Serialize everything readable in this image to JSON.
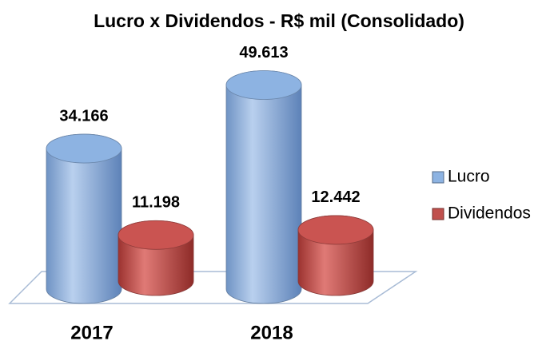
{
  "chart_data": {
    "type": "bar3d",
    "title": "Lucro x Dividendos - R$ mil (Consolidado)",
    "categories": [
      "2017",
      "2018"
    ],
    "series": [
      {
        "name": "Lucro",
        "color": "#8db3e2",
        "values": [
          34166,
          49613
        ],
        "value_labels": [
          "34.166",
          "49.613"
        ]
      },
      {
        "name": "Dividendos",
        "color": "#c0504d",
        "values": [
          11198,
          12442
        ],
        "value_labels": [
          "11.198",
          "12.442"
        ]
      }
    ]
  }
}
